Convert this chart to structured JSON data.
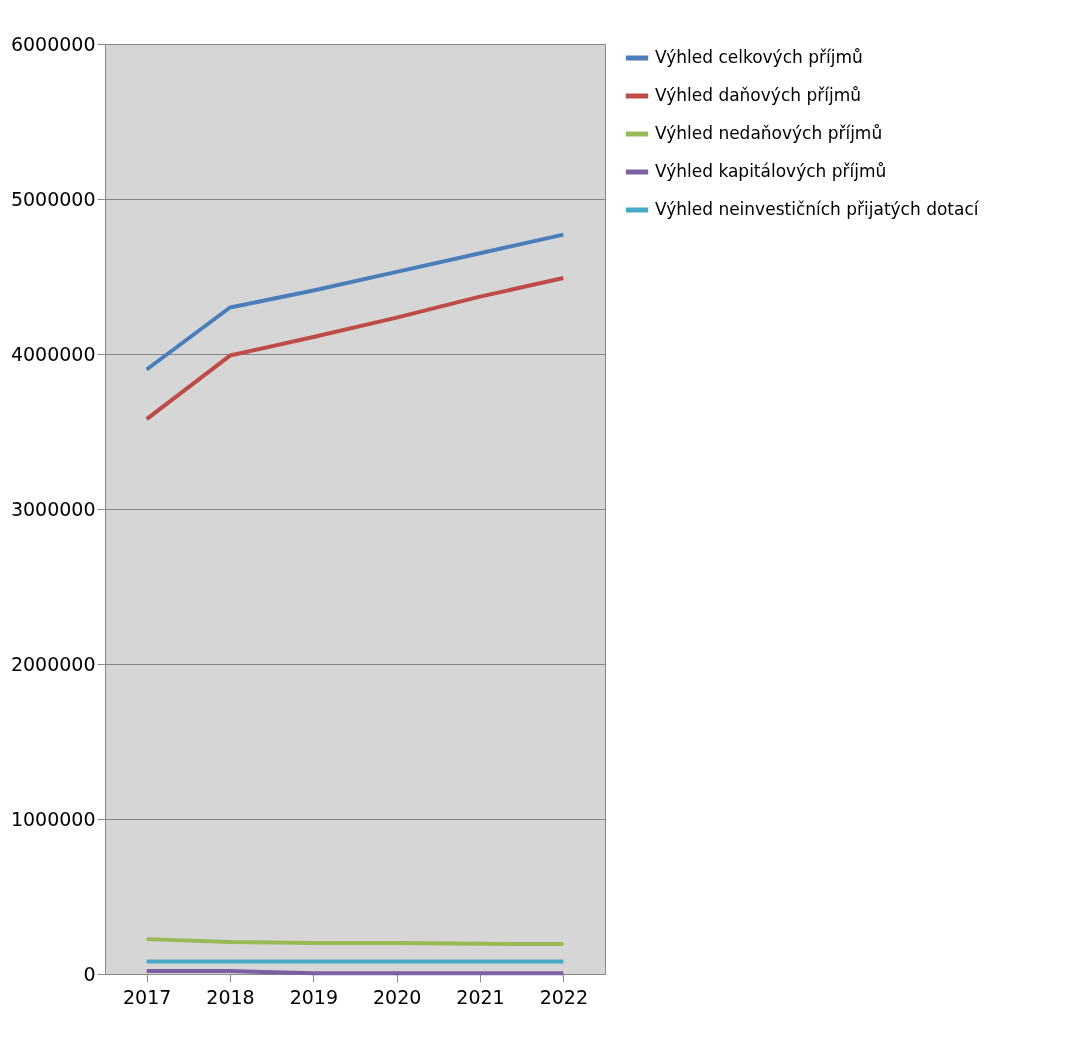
{
  "chart_data": {
    "type": "line",
    "categories": [
      "2017",
      "2018",
      "2019",
      "2020",
      "2021",
      "2022"
    ],
    "series": [
      {
        "name": "Výhled celkových příjmů",
        "color": "#4a7ebb",
        "values": [
          3900000,
          4300000,
          4410000,
          4530000,
          4650000,
          4770000
        ]
      },
      {
        "name": "Výhled daňových příjmů",
        "color": "#be4b48",
        "values": [
          3580000,
          3990000,
          4110000,
          4235000,
          4370000,
          4490000
        ]
      },
      {
        "name": "Výhled nedaňových příjmů",
        "color": "#98b954",
        "values": [
          225000,
          206000,
          200000,
          200000,
          195000,
          193000
        ]
      },
      {
        "name": "Výhled kapitálových příjmů",
        "color": "#7d60a0",
        "values": [
          19000,
          19000,
          5000,
          5000,
          5000,
          5000
        ]
      },
      {
        "name": "Výhled neinvestičních přijatých dotací",
        "color": "#46aac5",
        "values": [
          80000,
          80000,
          80000,
          80000,
          80000,
          80000
        ]
      }
    ],
    "ylim": [
      0,
      6000000
    ],
    "yticks": [
      0,
      1000000,
      2000000,
      3000000,
      4000000,
      5000000,
      6000000
    ],
    "grid": "y",
    "legend": "right",
    "marker": "none",
    "line_style": "solid"
  }
}
